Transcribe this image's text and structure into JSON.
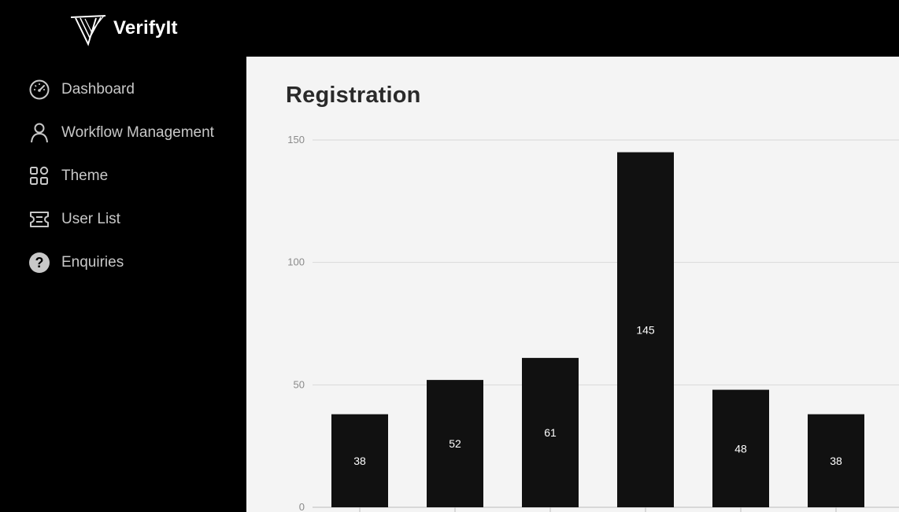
{
  "app": {
    "name": "VerifyIt"
  },
  "sidebar": {
    "items": [
      {
        "label": "Dashboard",
        "icon": "speedometer-icon"
      },
      {
        "label": "Workflow Management",
        "icon": "user-icon"
      },
      {
        "label": "Theme",
        "icon": "grid-icon"
      },
      {
        "label": "User List",
        "icon": "ticket-icon"
      },
      {
        "label": "Enquiries",
        "icon": "question-circle-icon"
      }
    ]
  },
  "main": {
    "title": "Registration"
  },
  "colors": {
    "sidebar_bg": "#000000",
    "main_bg": "#f4f4f4",
    "bar": "#111111",
    "grid": "#d9d9d9"
  },
  "chart_data": {
    "type": "bar",
    "categories": [
      "",
      "",
      "",
      "",
      "",
      ""
    ],
    "values": [
      38,
      52,
      61,
      145,
      48,
      38
    ],
    "yticks": [
      0,
      50,
      100,
      150
    ],
    "ylim": [
      0,
      150
    ],
    "grid": true,
    "data_labels": true
  }
}
